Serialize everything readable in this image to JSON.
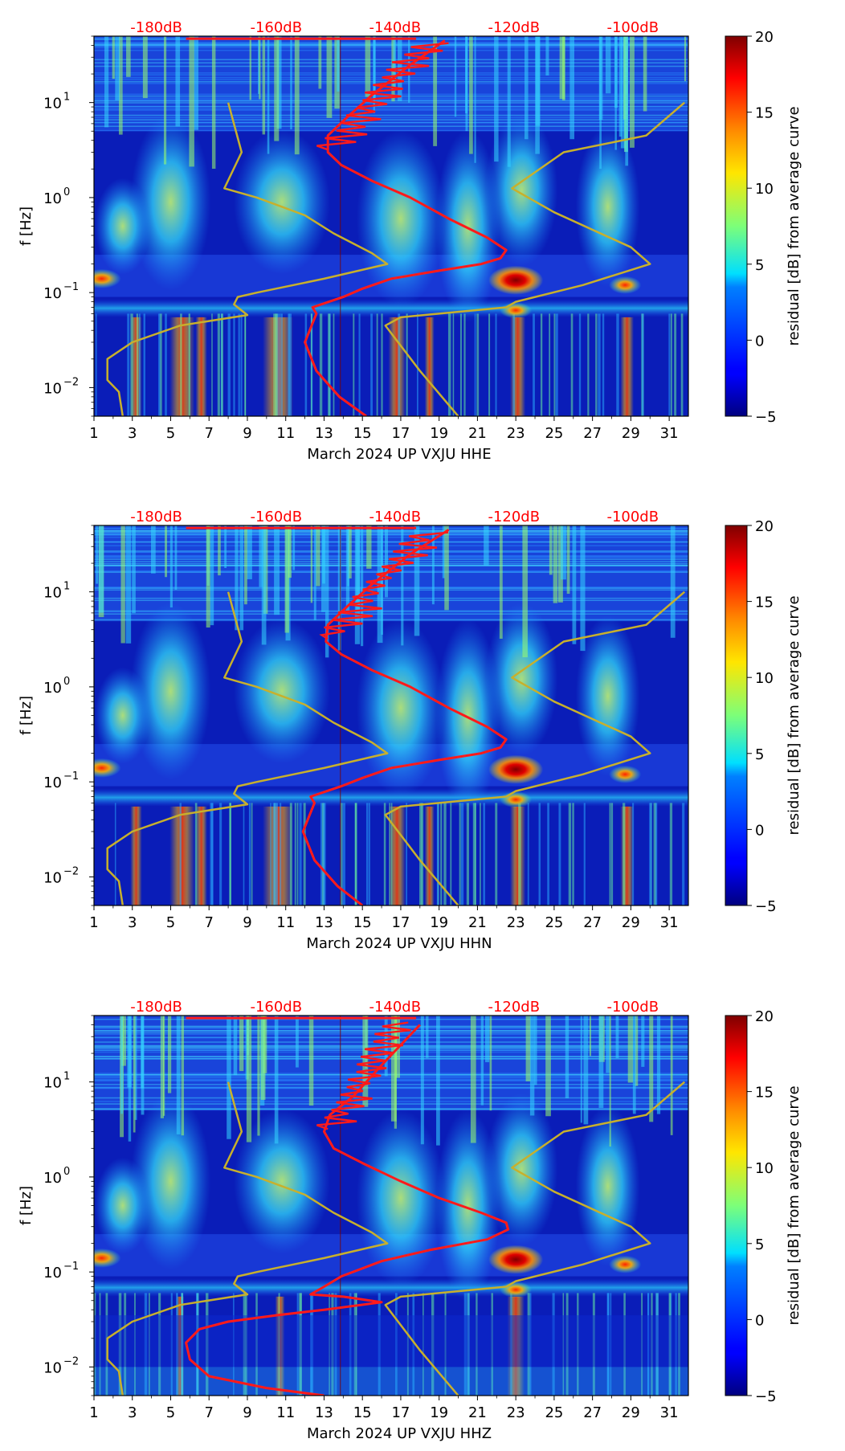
{
  "chart_data": [
    {
      "type": "heatmap",
      "title": "",
      "xlabel": "March 2024 UP VXJU  HHE",
      "ylabel": "f [Hz]",
      "x_ticks": [
        "1",
        "3",
        "5",
        "7",
        "9",
        "11",
        "13",
        "15",
        "17",
        "19",
        "21",
        "23",
        "25",
        "27",
        "29",
        "31"
      ],
      "xlim": [
        1,
        32
      ],
      "ylim": [
        0.005,
        50
      ],
      "y_ticks": [
        {
          "value": 0.01,
          "base": "10",
          "exp": "−2"
        },
        {
          "value": 0.1,
          "base": "10",
          "exp": "−1"
        },
        {
          "value": 1,
          "base": "10",
          "exp": "0"
        },
        {
          "value": 10,
          "base": "10",
          "exp": "1"
        }
      ],
      "top_labels": [
        {
          "text": "-180dB",
          "x": 4.25
        },
        {
          "text": "-160dB",
          "x": 10.5
        },
        {
          "text": "-140dB",
          "x": 16.7
        },
        {
          "text": "-120dB",
          "x": 22.9
        },
        {
          "text": "-100dB",
          "x": 29.1
        }
      ],
      "colorbar": {
        "label": "residual [dB] from average curve",
        "min": -5,
        "max": 20,
        "ticks": [
          "20",
          "15",
          "10",
          "5",
          "0",
          "−5"
        ]
      },
      "series": [
        {
          "name": "average PSD curve (red)",
          "color": "#ff1a1a",
          "x": [
            15.2,
            13.8,
            12.6,
            12.0,
            12.6,
            12.4,
            14.0,
            15.0,
            16.5,
            19.0,
            21.2,
            22.2,
            22.5,
            21.5,
            19.5,
            17.5,
            15.5,
            13.9,
            13.2,
            13.2,
            14.2,
            15.5,
            17.5,
            19.3
          ],
          "f": [
            0.005,
            0.008,
            0.015,
            0.03,
            0.06,
            0.07,
            0.09,
            0.11,
            0.14,
            0.17,
            0.2,
            0.23,
            0.28,
            0.38,
            0.6,
            1.0,
            1.5,
            2.2,
            3.0,
            4.5,
            7.0,
            12.0,
            25.0,
            45.0
          ]
        },
        {
          "name": "noise model curve (gold)",
          "color": "#c8b02c",
          "x": [
            20.0,
            18.0,
            16.2,
            17.0,
            22.5,
            23.0,
            26.5,
            30.0,
            29.0,
            25.0,
            22.8,
            25.5,
            29.8,
            31.8
          ],
          "f": [
            0.005,
            0.015,
            0.045,
            0.055,
            0.07,
            0.08,
            0.12,
            0.2,
            0.3,
            0.7,
            1.25,
            3.0,
            4.5,
            10.0
          ]
        },
        {
          "name": "low noise model curve (gold)",
          "color": "#c8b02c",
          "x": [
            2.5,
            2.3,
            1.7,
            1.7,
            3.0,
            5.5,
            9.0,
            8.3,
            8.5,
            9.5,
            13.0,
            16.3,
            15.5,
            13.5,
            12.0,
            9.5,
            7.8,
            8.7,
            8.0
          ],
          "f": [
            0.005,
            0.009,
            0.012,
            0.02,
            0.03,
            0.045,
            0.058,
            0.075,
            0.09,
            0.1,
            0.14,
            0.2,
            0.26,
            0.42,
            0.65,
            1.0,
            1.25,
            3.0,
            10.0
          ]
        }
      ]
    },
    {
      "type": "heatmap",
      "title": "",
      "xlabel": "March 2024 UP VXJU  HHN",
      "ylabel": "f [Hz]",
      "x_ticks": [
        "1",
        "3",
        "5",
        "7",
        "9",
        "11",
        "13",
        "15",
        "17",
        "19",
        "21",
        "23",
        "25",
        "27",
        "29",
        "31"
      ],
      "xlim": [
        1,
        32
      ],
      "ylim": [
        0.005,
        50
      ],
      "y_ticks": [
        {
          "value": 0.01,
          "base": "10",
          "exp": "−2"
        },
        {
          "value": 0.1,
          "base": "10",
          "exp": "−1"
        },
        {
          "value": 1,
          "base": "10",
          "exp": "0"
        },
        {
          "value": 10,
          "base": "10",
          "exp": "1"
        }
      ],
      "top_labels": [
        {
          "text": "-180dB",
          "x": 4.25
        },
        {
          "text": "-160dB",
          "x": 10.5
        },
        {
          "text": "-140dB",
          "x": 16.7
        },
        {
          "text": "-120dB",
          "x": 22.9
        },
        {
          "text": "-100dB",
          "x": 29.1
        }
      ],
      "colorbar": {
        "label": "residual [dB] from average curve",
        "min": -5,
        "max": 20,
        "ticks": [
          "20",
          "15",
          "10",
          "5",
          "0",
          "−5"
        ]
      },
      "series": [
        {
          "name": "average PSD curve (red)",
          "color": "#ff1a1a",
          "x": [
            15.0,
            13.7,
            12.5,
            11.9,
            12.5,
            12.3,
            13.9,
            15.0,
            16.5,
            19.0,
            21.2,
            22.2,
            22.5,
            21.5,
            19.5,
            17.5,
            15.5,
            13.9,
            13.1,
            13.2,
            14.2,
            15.5,
            17.5,
            19.5
          ],
          "f": [
            0.005,
            0.008,
            0.015,
            0.03,
            0.06,
            0.07,
            0.09,
            0.11,
            0.14,
            0.17,
            0.2,
            0.23,
            0.28,
            0.38,
            0.6,
            1.0,
            1.5,
            2.2,
            3.0,
            4.5,
            7.0,
            12.0,
            25.0,
            45.0
          ]
        },
        {
          "name": "noise model curve (gold)",
          "color": "#c8b02c",
          "x": [
            20.0,
            18.0,
            16.2,
            17.0,
            22.5,
            23.0,
            26.5,
            30.0,
            29.0,
            25.0,
            22.8,
            25.5,
            29.8,
            31.8
          ],
          "f": [
            0.005,
            0.015,
            0.045,
            0.055,
            0.07,
            0.08,
            0.12,
            0.2,
            0.3,
            0.7,
            1.25,
            3.0,
            4.5,
            10.0
          ]
        },
        {
          "name": "low noise model curve (gold)",
          "color": "#c8b02c",
          "x": [
            2.5,
            2.3,
            1.7,
            1.7,
            3.0,
            5.5,
            9.0,
            8.3,
            8.5,
            9.5,
            13.0,
            16.3,
            15.5,
            13.5,
            12.0,
            9.5,
            7.8,
            8.7,
            8.0
          ],
          "f": [
            0.005,
            0.009,
            0.012,
            0.02,
            0.03,
            0.045,
            0.058,
            0.075,
            0.09,
            0.1,
            0.14,
            0.2,
            0.26,
            0.42,
            0.65,
            1.0,
            1.25,
            3.0,
            10.0
          ]
        }
      ]
    },
    {
      "type": "heatmap",
      "title": "",
      "xlabel": "March 2024 UP VXJU  HHZ",
      "ylabel": "f [Hz]",
      "x_ticks": [
        "1",
        "3",
        "5",
        "7",
        "9",
        "11",
        "13",
        "15",
        "17",
        "19",
        "21",
        "23",
        "25",
        "27",
        "29",
        "31"
      ],
      "xlim": [
        1,
        32
      ],
      "ylim": [
        0.005,
        50
      ],
      "y_ticks": [
        {
          "value": 0.01,
          "base": "10",
          "exp": "−2"
        },
        {
          "value": 0.1,
          "base": "10",
          "exp": "−1"
        },
        {
          "value": 1,
          "base": "10",
          "exp": "0"
        },
        {
          "value": 10,
          "base": "10",
          "exp": "1"
        }
      ],
      "top_labels": [
        {
          "text": "-180dB",
          "x": 4.25
        },
        {
          "text": "-160dB",
          "x": 10.5
        },
        {
          "text": "-140dB",
          "x": 16.7
        },
        {
          "text": "-120dB",
          "x": 22.9
        },
        {
          "text": "-100dB",
          "x": 29.1
        }
      ],
      "colorbar": {
        "label": "residual [dB] from average curve",
        "min": -5,
        "max": 20,
        "ticks": [
          "20",
          "15",
          "10",
          "5",
          "0",
          "−5"
        ]
      },
      "series": [
        {
          "name": "average PSD curve (red)",
          "color": "#ff1a1a",
          "x": [
            13.0,
            10.0,
            7.0,
            6.0,
            5.8,
            6.5,
            8.0,
            10.5,
            13.0,
            16.0,
            14.0,
            12.3,
            13.0,
            13.9,
            16.0,
            18.5,
            21.5,
            22.6,
            22.5,
            21.2,
            19.0,
            17.0,
            15.0,
            13.5,
            13.0,
            13.3,
            14.5,
            16.0,
            18.0
          ],
          "f": [
            0.005,
            0.006,
            0.008,
            0.012,
            0.018,
            0.025,
            0.03,
            0.035,
            0.04,
            0.048,
            0.055,
            0.058,
            0.07,
            0.09,
            0.13,
            0.17,
            0.22,
            0.28,
            0.33,
            0.42,
            0.6,
            0.9,
            1.4,
            2.0,
            3.0,
            4.5,
            7.0,
            15.0,
            40.0
          ]
        },
        {
          "name": "noise model curve (gold)",
          "color": "#c8b02c",
          "x": [
            20.0,
            18.0,
            16.2,
            17.0,
            22.5,
            23.0,
            26.5,
            30.0,
            29.0,
            25.0,
            22.8,
            25.5,
            29.8,
            31.8
          ],
          "f": [
            0.005,
            0.015,
            0.045,
            0.055,
            0.07,
            0.08,
            0.12,
            0.2,
            0.3,
            0.7,
            1.25,
            3.0,
            4.5,
            10.0
          ]
        },
        {
          "name": "low noise model curve (gold)",
          "color": "#c8b02c",
          "x": [
            2.5,
            2.3,
            1.7,
            1.7,
            3.0,
            5.5,
            9.0,
            8.3,
            8.5,
            9.5,
            13.0,
            16.3,
            15.5,
            13.5,
            12.0,
            9.5,
            7.8,
            8.7,
            8.0
          ],
          "f": [
            0.005,
            0.009,
            0.012,
            0.02,
            0.03,
            0.045,
            0.058,
            0.075,
            0.09,
            0.1,
            0.14,
            0.2,
            0.26,
            0.42,
            0.65,
            1.0,
            1.25,
            3.0,
            10.0
          ]
        }
      ]
    }
  ]
}
